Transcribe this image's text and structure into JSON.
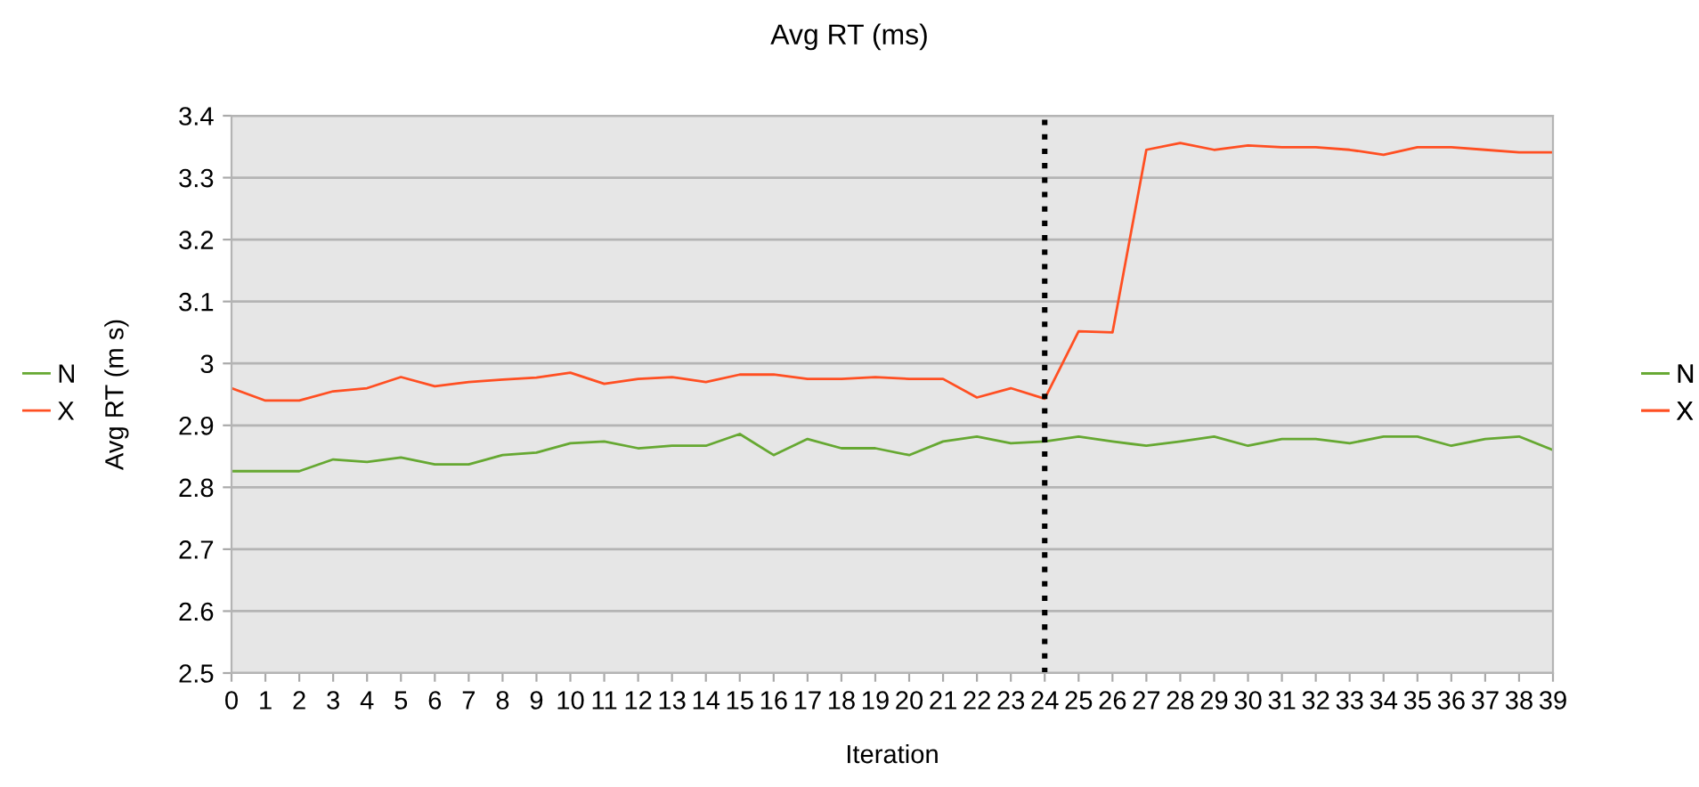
{
  "chart_data": {
    "type": "line",
    "title": "Avg RT (ms)",
    "xlabel": "Iteration",
    "ylabel": "Avg RT (m s)",
    "x": [
      0,
      1,
      2,
      3,
      4,
      5,
      6,
      7,
      8,
      9,
      10,
      11,
      12,
      13,
      14,
      15,
      16,
      17,
      18,
      19,
      20,
      21,
      22,
      23,
      24,
      25,
      26,
      27,
      28,
      29,
      30,
      31,
      32,
      33,
      34,
      35,
      36,
      37,
      38,
      39
    ],
    "series": [
      {
        "name": "N",
        "color": "#66a832",
        "values": [
          2.826,
          2.826,
          2.826,
          2.845,
          2.841,
          2.848,
          2.837,
          2.837,
          2.852,
          2.856,
          2.871,
          2.874,
          2.863,
          2.867,
          2.867,
          2.886,
          2.852,
          2.878,
          2.863,
          2.863,
          2.852,
          2.874,
          2.882,
          2.871,
          2.874,
          2.882,
          2.874,
          2.867,
          2.874,
          2.882,
          2.867,
          2.878,
          2.878,
          2.871,
          2.882,
          2.882,
          2.867,
          2.878,
          2.882,
          2.86
        ]
      },
      {
        "name": "X",
        "color": "#ff4f22",
        "values": [
          2.96,
          2.94,
          2.94,
          2.955,
          2.96,
          2.978,
          2.963,
          2.97,
          2.974,
          2.977,
          2.985,
          2.967,
          2.975,
          2.978,
          2.97,
          2.982,
          2.982,
          2.975,
          2.975,
          2.978,
          2.975,
          2.975,
          2.945,
          2.96,
          2.943,
          3.052,
          3.05,
          3.345,
          3.356,
          3.345,
          3.352,
          3.349,
          3.349,
          3.345,
          3.337,
          3.349,
          3.349,
          3.345,
          3.341,
          3.341
        ]
      }
    ],
    "xlim": [
      0,
      39
    ],
    "xticks": [
      0,
      1,
      2,
      3,
      4,
      5,
      6,
      7,
      8,
      9,
      10,
      11,
      12,
      13,
      14,
      15,
      16,
      17,
      18,
      19,
      20,
      21,
      22,
      23,
      24,
      25,
      26,
      27,
      28,
      29,
      30,
      31,
      32,
      33,
      34,
      35,
      36,
      37,
      38,
      39
    ],
    "ylim": [
      2.5,
      3.4
    ],
    "yticks": [
      2.5,
      2.6,
      2.7,
      2.8,
      2.9,
      3,
      3.1,
      3.2,
      3.3,
      3.4
    ],
    "ref_lines": [
      {
        "axis": "x",
        "value": 24,
        "color": "#000000",
        "line_style": "dotted"
      }
    ],
    "grid": "y",
    "legend": [
      "left",
      "right"
    ],
    "marker": "none",
    "line_style": "solid"
  }
}
